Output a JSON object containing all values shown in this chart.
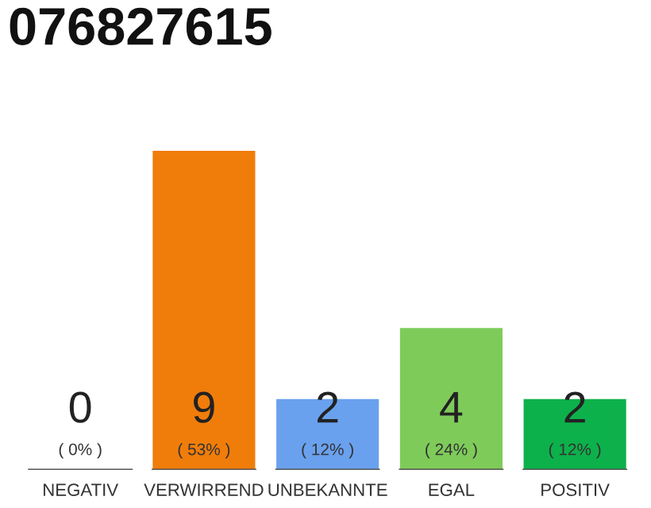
{
  "chart_data": {
    "type": "bar",
    "title": "076827615",
    "categories": [
      "NEGATIV",
      "VERWIRREND",
      "UNBEKANNTE",
      "EGAL",
      "POSITIV"
    ],
    "values": [
      0,
      9,
      2,
      4,
      2
    ],
    "colors": [
      "#e03c3c",
      "#f07d0a",
      "#6aa1ee",
      "#7ecb5a",
      "#0db14b"
    ],
    "data_labels": true,
    "annotations": [
      "( 0% )",
      "( 53% )",
      "( 12% )",
      "( 24% )",
      "( 12% )"
    ],
    "tick_labels": "x",
    "grid": false,
    "legend": false
  }
}
